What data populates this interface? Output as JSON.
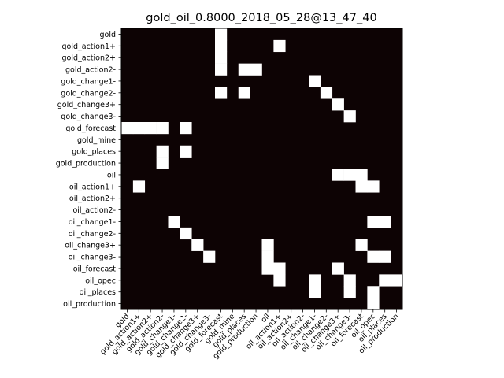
{
  "chart_data": {
    "type": "heatmap",
    "title": "gold_oil_0.8000_2018_05_28@13_47_40",
    "xlabel": "",
    "ylabel": "",
    "colors": {
      "off": "#0d0304",
      "on": "#ffffff"
    },
    "labels": [
      "gold",
      "gold_action1+",
      "gold_action2+",
      "gold_action2-",
      "gold_change1-",
      "gold_change2-",
      "gold_change3+",
      "gold_change3-",
      "gold_forecast",
      "gold_mine",
      "gold_places",
      "gold_production",
      "oil",
      "oil_action1+",
      "oil_action2+",
      "oil_action2-",
      "oil_change1-",
      "oil_change2-",
      "oil_change3+",
      "oil_change3-",
      "oil_forecast",
      "oil_opec",
      "oil_places",
      "oil_production"
    ],
    "matrix": [
      [
        0,
        0,
        0,
        0,
        0,
        0,
        0,
        0,
        1,
        0,
        0,
        0,
        0,
        0,
        0,
        0,
        0,
        0,
        0,
        0,
        0,
        0,
        0,
        0
      ],
      [
        0,
        0,
        0,
        0,
        0,
        0,
        0,
        0,
        1,
        0,
        0,
        0,
        0,
        1,
        0,
        0,
        0,
        0,
        0,
        0,
        0,
        0,
        0,
        0
      ],
      [
        0,
        0,
        0,
        0,
        0,
        0,
        0,
        0,
        1,
        0,
        0,
        0,
        0,
        0,
        0,
        0,
        0,
        0,
        0,
        0,
        0,
        0,
        0,
        0
      ],
      [
        0,
        0,
        0,
        0,
        0,
        0,
        0,
        0,
        1,
        0,
        1,
        1,
        0,
        0,
        0,
        0,
        0,
        0,
        0,
        0,
        0,
        0,
        0,
        0
      ],
      [
        0,
        0,
        0,
        0,
        0,
        0,
        0,
        0,
        0,
        0,
        0,
        0,
        0,
        0,
        0,
        0,
        1,
        0,
        0,
        0,
        0,
        0,
        0,
        0
      ],
      [
        0,
        0,
        0,
        0,
        0,
        0,
        0,
        0,
        1,
        0,
        1,
        0,
        0,
        0,
        0,
        0,
        0,
        1,
        0,
        0,
        0,
        0,
        0,
        0
      ],
      [
        0,
        0,
        0,
        0,
        0,
        0,
        0,
        0,
        0,
        0,
        0,
        0,
        0,
        0,
        0,
        0,
        0,
        0,
        1,
        0,
        0,
        0,
        0,
        0
      ],
      [
        0,
        0,
        0,
        0,
        0,
        0,
        0,
        0,
        0,
        0,
        0,
        0,
        0,
        0,
        0,
        0,
        0,
        0,
        0,
        1,
        0,
        0,
        0,
        0
      ],
      [
        1,
        1,
        1,
        1,
        0,
        1,
        0,
        0,
        0,
        0,
        0,
        0,
        0,
        0,
        0,
        0,
        0,
        0,
        0,
        0,
        0,
        0,
        0,
        0
      ],
      [
        0,
        0,
        0,
        0,
        0,
        0,
        0,
        0,
        0,
        0,
        0,
        0,
        0,
        0,
        0,
        0,
        0,
        0,
        0,
        0,
        0,
        0,
        0,
        0
      ],
      [
        0,
        0,
        0,
        1,
        0,
        1,
        0,
        0,
        0,
        0,
        0,
        0,
        0,
        0,
        0,
        0,
        0,
        0,
        0,
        0,
        0,
        0,
        0,
        0
      ],
      [
        0,
        0,
        0,
        1,
        0,
        0,
        0,
        0,
        0,
        0,
        0,
        0,
        0,
        0,
        0,
        0,
        0,
        0,
        0,
        0,
        0,
        0,
        0,
        0
      ],
      [
        0,
        0,
        0,
        0,
        0,
        0,
        0,
        0,
        0,
        0,
        0,
        0,
        0,
        0,
        0,
        0,
        0,
        0,
        1,
        1,
        1,
        0,
        0,
        0
      ],
      [
        0,
        1,
        0,
        0,
        0,
        0,
        0,
        0,
        0,
        0,
        0,
        0,
        0,
        0,
        0,
        0,
        0,
        0,
        0,
        0,
        1,
        1,
        0,
        0
      ],
      [
        0,
        0,
        0,
        0,
        0,
        0,
        0,
        0,
        0,
        0,
        0,
        0,
        0,
        0,
        0,
        0,
        0,
        0,
        0,
        0,
        0,
        0,
        0,
        0
      ],
      [
        0,
        0,
        0,
        0,
        0,
        0,
        0,
        0,
        0,
        0,
        0,
        0,
        0,
        0,
        0,
        0,
        0,
        0,
        0,
        0,
        0,
        0,
        0,
        0
      ],
      [
        0,
        0,
        0,
        0,
        1,
        0,
        0,
        0,
        0,
        0,
        0,
        0,
        0,
        0,
        0,
        0,
        0,
        0,
        0,
        0,
        0,
        1,
        1,
        0
      ],
      [
        0,
        0,
        0,
        0,
        0,
        1,
        0,
        0,
        0,
        0,
        0,
        0,
        0,
        0,
        0,
        0,
        0,
        0,
        0,
        0,
        0,
        0,
        0,
        0
      ],
      [
        0,
        0,
        0,
        0,
        0,
        0,
        1,
        0,
        0,
        0,
        0,
        0,
        1,
        0,
        0,
        0,
        0,
        0,
        0,
        0,
        1,
        0,
        0,
        0
      ],
      [
        0,
        0,
        0,
        0,
        0,
        0,
        0,
        1,
        0,
        0,
        0,
        0,
        1,
        0,
        0,
        0,
        0,
        0,
        0,
        0,
        0,
        1,
        1,
        0
      ],
      [
        0,
        0,
        0,
        0,
        0,
        0,
        0,
        0,
        0,
        0,
        0,
        0,
        1,
        1,
        0,
        0,
        0,
        0,
        1,
        0,
        0,
        0,
        0,
        0
      ],
      [
        0,
        0,
        0,
        0,
        0,
        0,
        0,
        0,
        0,
        0,
        0,
        0,
        0,
        1,
        0,
        0,
        1,
        0,
        0,
        1,
        0,
        0,
        1,
        1
      ],
      [
        0,
        0,
        0,
        0,
        0,
        0,
        0,
        0,
        0,
        0,
        0,
        0,
        0,
        0,
        0,
        0,
        1,
        0,
        0,
        1,
        0,
        1,
        0,
        0
      ],
      [
        0,
        0,
        0,
        0,
        0,
        0,
        0,
        0,
        0,
        0,
        0,
        0,
        0,
        0,
        0,
        0,
        0,
        0,
        0,
        0,
        0,
        1,
        0,
        0
      ]
    ]
  }
}
